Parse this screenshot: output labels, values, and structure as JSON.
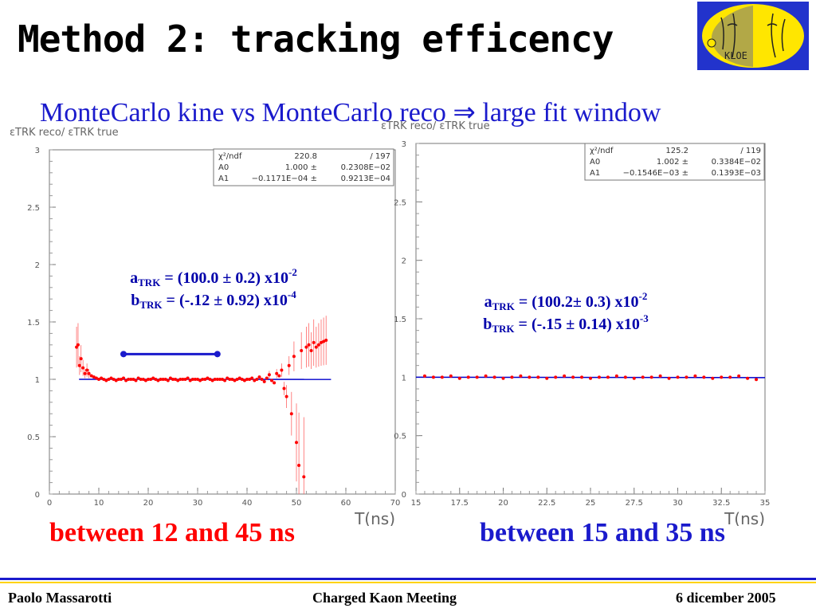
{
  "slide": {
    "title": "Method 2: tracking efficency",
    "subtitle": "MonteCarlo kine vs MonteCarlo reco ⇒ large fit window",
    "caption_left": "between 12 and 45 ns",
    "caption_right": "between 15 and 35 ns",
    "footer_left": "Paolo Massarotti",
    "footer_center": "Charged Kaon Meeting",
    "footer_right": "6 dicember 2005",
    "logo_text": "KLOE"
  },
  "colors": {
    "title": "#000000",
    "subtitle": "#1a1acc",
    "data": "#ff0000",
    "fit": "#0000cc",
    "caption_left": "#ff0000",
    "caption_right": "#1a1acc"
  },
  "chart_data": [
    {
      "type": "scatter",
      "xlabel": "T(ns)",
      "ylabel": "εTRK reco/ εTRK true",
      "xlim": [
        0,
        70
      ],
      "ylim": [
        0,
        3
      ],
      "xticks": [
        0,
        10,
        20,
        30,
        40,
        50,
        60,
        70
      ],
      "yticks": [
        0,
        0.5,
        1,
        1.5,
        2,
        2.5,
        3
      ],
      "stats": [
        {
          "name": "χ²/ndf",
          "value": "220.8",
          "extra": "/   197"
        },
        {
          "name": "A0",
          "value": "1.000 ±",
          "extra": "0.2308E−02"
        },
        {
          "name": "A1",
          "value": "−0.1171E−04 ±",
          "extra": "0.9213E−04"
        }
      ],
      "annotation": {
        "a_label": "a",
        "a_value": " = (100.0 ± 0.2) x10",
        "a_exp": "-2",
        "b_label": "b",
        "b_value": " = (-.12 ± 0.92) x10",
        "b_exp": "-4",
        "sub": "TRK"
      },
      "fit_window": [
        15,
        34
      ],
      "fit_line": {
        "a": 1.0,
        "b": -1.17e-05,
        "x_range": [
          6,
          57
        ]
      },
      "series": [
        {
          "x": [
            5.5,
            5.8,
            6.1,
            6.4,
            6.8,
            7.2,
            7.6,
            8.0,
            8.5,
            9,
            9.5,
            10,
            10.5,
            11,
            11.5,
            12,
            12.5,
            13,
            13.5,
            14,
            14.5,
            15,
            15.5,
            16,
            16.5,
            17,
            17.5,
            18,
            18.5,
            19,
            19.5,
            20,
            20.5,
            21,
            21.5,
            22,
            22.5,
            23,
            23.5,
            24,
            24.5,
            25,
            25.5,
            26,
            26.5,
            27,
            27.5,
            28,
            28.5,
            29,
            29.5,
            30,
            30.5,
            31,
            31.5,
            32,
            32.5,
            33,
            33.5,
            34,
            34.5,
            35,
            35.5,
            36,
            36.5,
            37,
            37.5,
            38,
            38.5,
            39,
            39.5,
            40,
            40.5,
            41,
            41.5,
            42,
            42.5,
            43,
            43.5,
            44,
            44.5,
            45,
            45.5,
            46,
            46.5,
            47,
            47.5,
            48,
            48.5,
            49,
            49.5,
            50,
            50.5,
            51,
            51.5,
            52,
            52.5,
            53,
            53.5,
            54,
            54.5,
            55,
            55.5,
            56
          ],
          "y": [
            1.28,
            1.3,
            1.12,
            1.18,
            1.1,
            1.05,
            1.08,
            1.05,
            1.03,
            1.02,
            1.01,
            1.0,
            1.01,
            1.0,
            0.99,
            1.0,
            1.01,
            1.0,
            0.99,
            1.0,
            1.0,
            1.01,
            0.99,
            1.0,
            1.0,
            1.0,
            0.99,
            1.01,
            1.0,
            1.0,
            0.99,
            1.0,
            1.0,
            1.01,
            1.0,
            0.99,
            1.0,
            1.0,
            1.0,
            0.99,
            1.01,
            1.0,
            1.0,
            0.99,
            1.0,
            1.0,
            1.0,
            1.01,
            0.99,
            1.0,
            1.0,
            1.0,
            0.99,
            1.0,
            1.0,
            1.01,
            1.0,
            0.99,
            1.0,
            1.0,
            1.0,
            1.0,
            0.99,
            1.01,
            1.0,
            1.0,
            0.99,
            1.0,
            1.01,
            1.0,
            0.99,
            1.0,
            1.0,
            1.01,
            0.99,
            1.0,
            1.02,
            1.0,
            0.98,
            1.01,
            1.04,
            0.99,
            0.97,
            1.05,
            1.03,
            1.08,
            0.92,
            0.85,
            1.12,
            0.7,
            1.2,
            0.45,
            0.25,
            1.25,
            0.15,
            1.28,
            1.3,
            1.25,
            1.32,
            1.28,
            1.3,
            1.32,
            1.33,
            1.34
          ]
        }
      ]
    },
    {
      "type": "scatter",
      "xlabel": "T(ns)",
      "ylabel": "εTRK reco/ εTRK true",
      "xlim": [
        15,
        35
      ],
      "ylim": [
        0,
        3
      ],
      "xticks": [
        15,
        17.5,
        20,
        22.5,
        25,
        27.5,
        30,
        32.5,
        35
      ],
      "yticks": [
        0,
        0.5,
        1,
        1.5,
        2,
        2.5,
        3
      ],
      "stats": [
        {
          "name": "χ²/ndf",
          "value": "125.2",
          "extra": "/   119"
        },
        {
          "name": "A0",
          "value": "1.002 ±",
          "extra": "0.3384E−02"
        },
        {
          "name": "A1",
          "value": "−0.1546E−03 ±",
          "extra": "0.1393E−03"
        }
      ],
      "annotation": {
        "a_label": "a",
        "a_value": " = (100.2± 0.3) x10",
        "a_exp": "-2",
        "b_label": "b",
        "b_value": " = (-.15 ± 0.14) x10",
        "b_exp": "-3",
        "sub": "TRK"
      },
      "fit_line": {
        "a": 1.002,
        "b": -0.0001546,
        "x_range": [
          15,
          35
        ]
      },
      "series": [
        {
          "x": [
            15.5,
            16,
            16.5,
            17,
            17.5,
            18,
            18.5,
            19,
            19.5,
            20,
            20.5,
            21,
            21.5,
            22,
            22.5,
            23,
            23.5,
            24,
            24.5,
            25,
            25.5,
            26,
            26.5,
            27,
            27.5,
            28,
            28.5,
            29,
            29.5,
            30,
            30.5,
            31,
            31.5,
            32,
            32.5,
            33,
            33.5,
            34,
            34.5
          ],
          "y": [
            1.01,
            1.0,
            1.0,
            1.01,
            0.99,
            1.0,
            1.0,
            1.01,
            1.0,
            0.99,
            1.0,
            1.01,
            1.0,
            1.0,
            0.99,
            1.0,
            1.01,
            1.0,
            1.0,
            0.99,
            1.0,
            1.0,
            1.01,
            1.0,
            0.99,
            1.0,
            1.0,
            1.01,
            0.99,
            1.0,
            1.0,
            1.01,
            1.0,
            0.99,
            1.0,
            1.0,
            1.01,
            0.99,
            0.98
          ]
        }
      ]
    }
  ]
}
